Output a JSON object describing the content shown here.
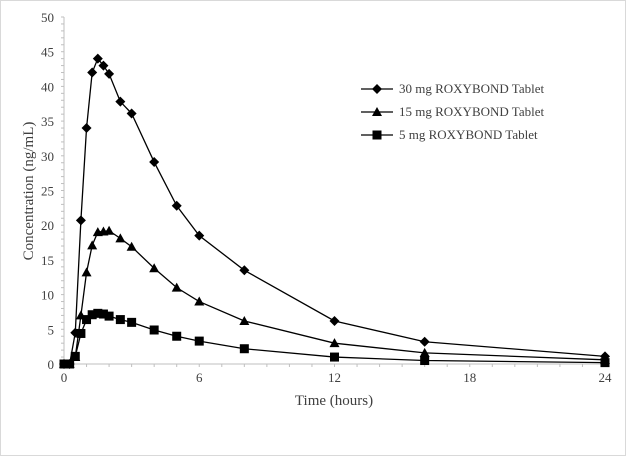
{
  "chart_data": {
    "type": "line",
    "title": "",
    "xlabel": "Time (hours)",
    "ylabel": "Concentration (ng/mL)",
    "xlim": [
      0,
      24
    ],
    "ylim": [
      0,
      50
    ],
    "xticks": [
      0,
      6,
      12,
      18,
      24
    ],
    "yticks": [
      0,
      5,
      10,
      15,
      20,
      25,
      30,
      35,
      40,
      45,
      50
    ],
    "grid": false,
    "legend_position": "right",
    "x": [
      0,
      0.25,
      0.5,
      0.75,
      1,
      1.25,
      1.5,
      1.75,
      2,
      2.5,
      3,
      4,
      5,
      6,
      8,
      12,
      16,
      24
    ],
    "series": [
      {
        "name": "30 mg ROXYBOND Tablet",
        "marker": "diamond",
        "values": [
          0,
          0,
          4.5,
          20.7,
          34,
          42,
          44,
          43,
          41.8,
          37.8,
          36.1,
          29.1,
          22.8,
          18.5,
          13.5,
          6.2,
          3.2,
          1.1
        ]
      },
      {
        "name": "15 mg ROXYBOND Tablet",
        "marker": "triangle",
        "values": [
          0,
          0,
          1.0,
          7.0,
          13.2,
          17.1,
          19.0,
          19.1,
          19.2,
          18.1,
          16.9,
          13.8,
          11.0,
          9.0,
          6.2,
          3.0,
          1.6,
          0.6
        ]
      },
      {
        "name": " 5 mg ROXYBOND Tablet",
        "marker": "square",
        "values": [
          0,
          0,
          1.1,
          4.4,
          6.4,
          7.1,
          7.3,
          7.2,
          6.9,
          6.4,
          6.0,
          4.9,
          4.0,
          3.3,
          2.2,
          1.0,
          0.5,
          0.2
        ]
      }
    ]
  }
}
